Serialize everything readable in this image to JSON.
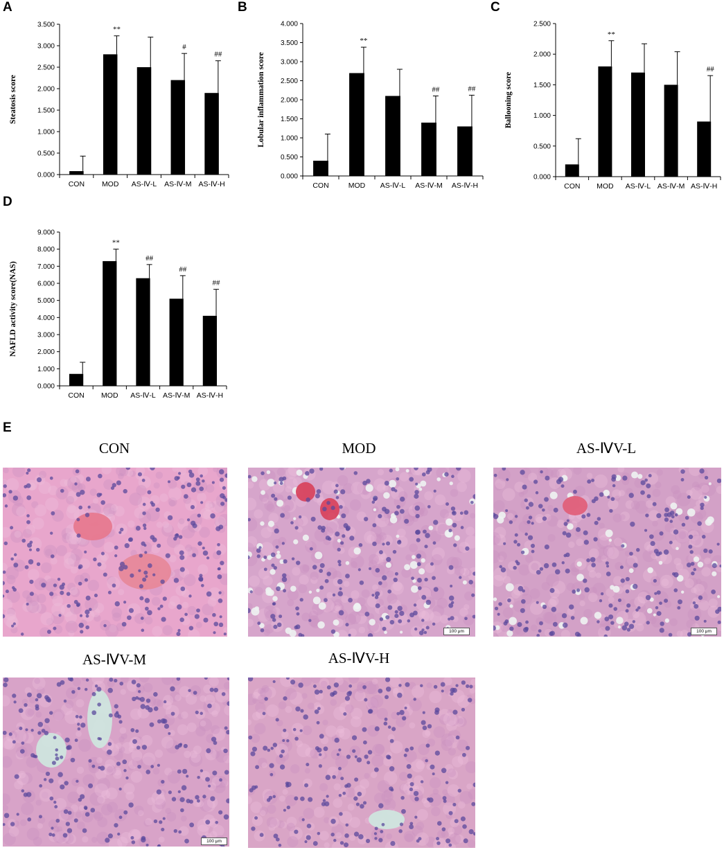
{
  "panel_letters": {
    "a": "A",
    "b": "B",
    "c": "C",
    "d": "D",
    "e": "E"
  },
  "chart_data": [
    {
      "type": "bar",
      "panel": "A",
      "ylabel": "Steatosis score",
      "categories": [
        "CON",
        "MOD",
        "AS-Ⅳ-L",
        "AS-Ⅳ-M",
        "AS-Ⅳ-H"
      ],
      "values": [
        0.08,
        2.8,
        2.5,
        2.2,
        1.9
      ],
      "errors": [
        0.35,
        0.43,
        0.7,
        0.62,
        0.75
      ],
      "significance": [
        "",
        "**",
        "",
        "#",
        "##"
      ],
      "ylim": [
        0,
        3.5
      ],
      "yticks": [
        "0.000",
        "0.500",
        "1.000",
        "1.500",
        "2.000",
        "2.500",
        "3.000",
        "3.500"
      ],
      "bar_color": "#000000",
      "grid": false
    },
    {
      "type": "bar",
      "panel": "B",
      "ylabel": "Lobular inflammation score",
      "categories": [
        "CON",
        "MOD",
        "AS-Ⅳ-L",
        "AS-Ⅳ-M",
        "AS-Ⅳ-H"
      ],
      "values": [
        0.4,
        2.7,
        2.1,
        1.4,
        1.3
      ],
      "errors": [
        0.7,
        0.68,
        0.7,
        0.7,
        0.82
      ],
      "significance": [
        "",
        "**",
        "",
        "##",
        "##"
      ],
      "ylim": [
        0,
        4.0
      ],
      "yticks": [
        "0.000",
        "0.500",
        "1.000",
        "1.500",
        "2.000",
        "2.500",
        "3.000",
        "3.500",
        "4.000"
      ],
      "bar_color": "#000000",
      "grid": false
    },
    {
      "type": "bar",
      "panel": "C",
      "ylabel": "Ballooning score",
      "categories": [
        "CON",
        "MOD",
        "AS-Ⅳ-L",
        "AS-Ⅳ-M",
        "AS-Ⅳ-H"
      ],
      "values": [
        0.2,
        1.8,
        1.7,
        1.5,
        0.9
      ],
      "errors": [
        0.42,
        0.42,
        0.47,
        0.54,
        0.75
      ],
      "significance": [
        "",
        "**",
        "",
        "",
        "##"
      ],
      "ylim": [
        0,
        2.5
      ],
      "yticks": [
        "0.000",
        "0.500",
        "1.000",
        "1.500",
        "2.000",
        "2.500"
      ],
      "bar_color": "#000000",
      "grid": false
    },
    {
      "type": "bar",
      "panel": "D",
      "ylabel": "NAFLD activity score(NAS)",
      "categories": [
        "CON",
        "MOD",
        "AS-Ⅳ-L",
        "AS-Ⅳ-M",
        "AS-Ⅳ-H"
      ],
      "values": [
        0.7,
        7.3,
        6.3,
        5.1,
        4.1
      ],
      "errors": [
        0.68,
        0.7,
        0.8,
        1.35,
        1.55
      ],
      "significance": [
        "",
        "**",
        "##",
        "##",
        "##"
      ],
      "ylim": [
        0,
        9.0
      ],
      "yticks": [
        "0.000",
        "1.000",
        "2.000",
        "3.000",
        "4.000",
        "5.000",
        "6.000",
        "7.000",
        "8.000",
        "9.000"
      ],
      "bar_color": "#000000",
      "grid": false
    }
  ],
  "micrographs": [
    {
      "label": "CON",
      "scale_bar": ""
    },
    {
      "label": "MOD",
      "scale_bar": "100 μm"
    },
    {
      "label": "AS-ⅣV-L",
      "scale_bar": "100 μm"
    },
    {
      "label": "AS-ⅣV-M",
      "scale_bar": "100 μm"
    },
    {
      "label": "AS-ⅣV-H",
      "scale_bar": ""
    }
  ],
  "colors": {
    "stain_background": "#d9a3c8",
    "nucleus": "#5b4a9c",
    "vessel_lumen": "#cfe5de",
    "blood": "#e0607a"
  }
}
